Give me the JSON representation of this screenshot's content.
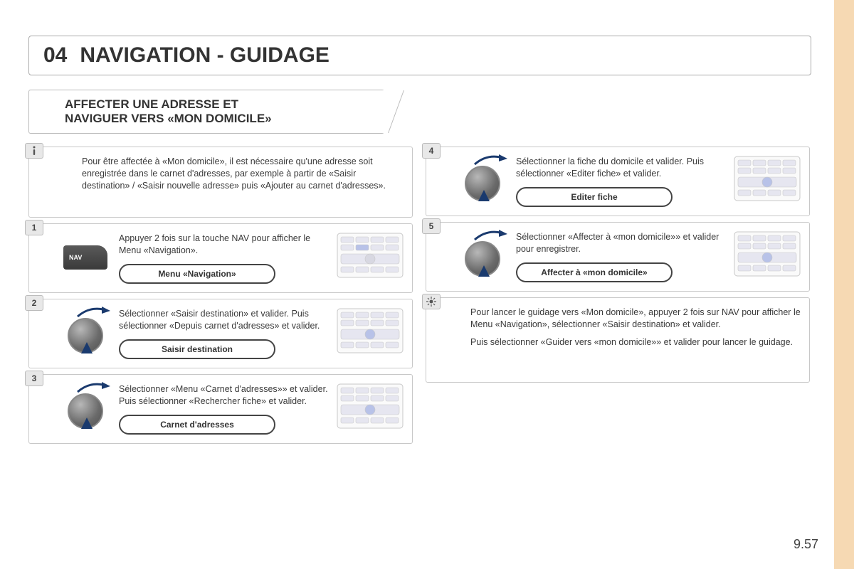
{
  "accent_color": "#f6d9b3",
  "title_number": "04",
  "title_text": "NAVIGATION - GUIDAGE",
  "subtitle_line1": "AFFECTER UNE ADRESSE ET",
  "subtitle_line2": "NAVIGUER VERS «MON DOMICILE»",
  "intro_text": "Pour être affectée à «Mon domicile», il est nécessaire qu'une adresse soit enregistrée dans le carnet d'adresses, par exemple à partir de «Saisir destination» / «Saisir nouvelle adresse» puis «Ajouter au carnet d'adresses».",
  "steps": [
    {
      "num": "1",
      "text": "Appuyer 2 fois sur la touche NAV pour afficher le Menu «Navigation».",
      "pill": "Menu «Navigation»",
      "icon": "nav"
    },
    {
      "num": "2",
      "text": "Sélectionner «Saisir destination» et valider. Puis sélectionner «Depuis carnet d'adresses» et valider.",
      "pill": "Saisir destination",
      "icon": "dial"
    },
    {
      "num": "3",
      "text": "Sélectionner «Menu «Carnet d'adresses»» et valider. Puis sélectionner «Rechercher fiche» et valider.",
      "pill": "Carnet d'adresses",
      "icon": "dial"
    },
    {
      "num": "4",
      "text": "Sélectionner la fiche du domicile et valider. Puis sélectionner «Editer fiche» et valider.",
      "pill": "Editer fiche",
      "icon": "dial"
    },
    {
      "num": "5",
      "text": "Sélectionner «Affecter à «mon domicile»» et valider pour enregistrer.",
      "pill": "Affecter à «mon domicile»",
      "icon": "dial"
    }
  ],
  "note_para1": "Pour lancer le guidage vers «Mon domicile», appuyer 2 fois sur NAV pour afficher le Menu «Navigation», sélectionner «Saisir destination» et valider.",
  "note_para2": "Puis sélectionner «Guider vers «mon domicile»» et valider pour lancer le guidage.",
  "page_number": "9.57",
  "nav_label": "NAV",
  "panel": {
    "border": "#c8c8c8",
    "fill": "#fafafa",
    "btn": "#e6e6f0",
    "dial": "#d8d8e2"
  }
}
